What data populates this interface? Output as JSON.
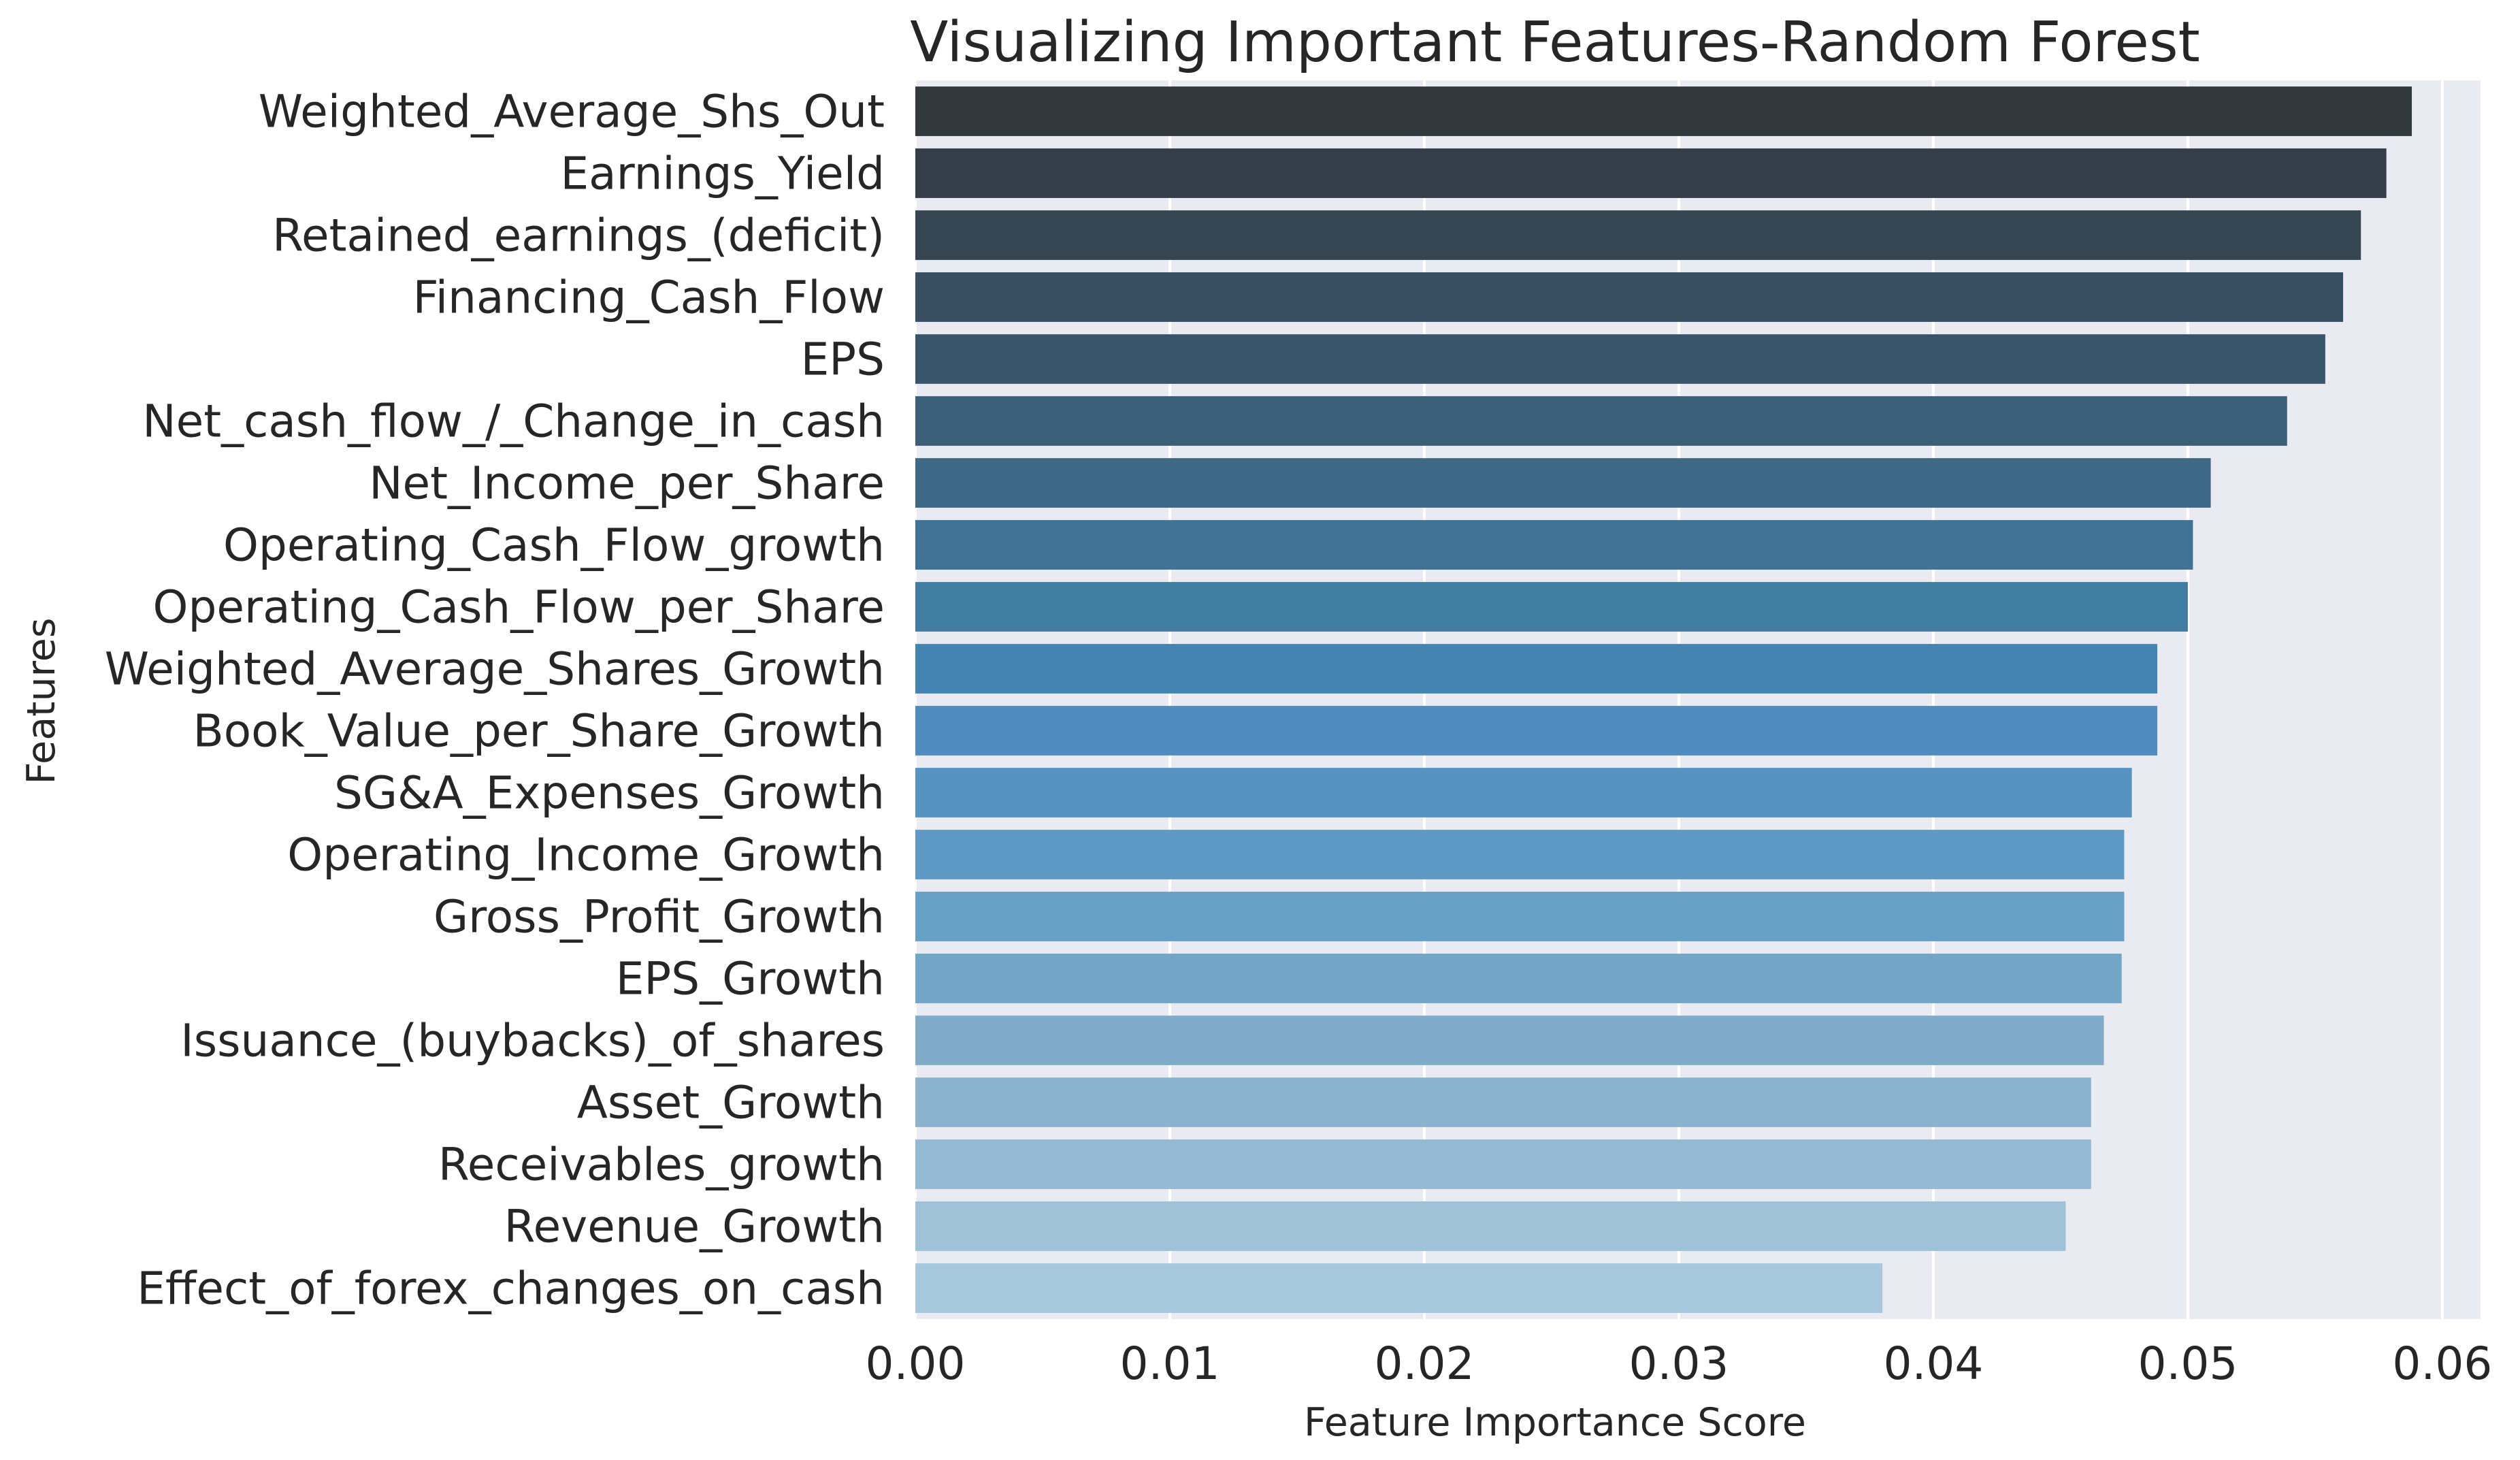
{
  "chart_data": {
    "type": "bar",
    "orientation": "horizontal",
    "title": "Visualizing Important Features-Random Forest",
    "xlabel": "Feature Importance Score",
    "ylabel": "Features",
    "xlim": [
      0,
      0.0615
    ],
    "xticks": [
      "0.00",
      "0.01",
      "0.02",
      "0.03",
      "0.04",
      "0.05",
      "0.06"
    ],
    "grid": true,
    "background": "#eaeaf2",
    "palette": "Blues_d",
    "categories": [
      "Weighted_Average_Shs_Out",
      "Earnings_Yield",
      "Retained_earnings_(deficit)",
      "Financing_Cash_Flow",
      "EPS",
      "Net_cash_flow_/_Change_in_cash",
      "Net_Income_per_Share",
      "Operating_Cash_Flow_growth",
      "Operating_Cash_Flow_per_Share",
      "Weighted_Average_Shares_Growth",
      "Book_Value_per_Share_Growth",
      "SG&A_Expenses_Growth",
      "Operating_Income_Growth",
      "Gross_Profit_Growth",
      "EPS_Growth",
      "Issuance_(buybacks)_of_shares",
      "Asset_Growth",
      "Receivables_growth",
      "Revenue_Growth",
      "Effect_of_forex_changes_on_cash"
    ],
    "values": [
      0.0588,
      0.0578,
      0.0568,
      0.0561,
      0.0554,
      0.0539,
      0.0509,
      0.0502,
      0.05,
      0.0488,
      0.0488,
      0.0478,
      0.0475,
      0.0475,
      0.0474,
      0.0467,
      0.0462,
      0.0462,
      0.0452,
      0.038
    ],
    "colors": [
      "#32383e",
      "#333e48",
      "#354553",
      "#374e60",
      "#39556b",
      "#3b5f79",
      "#3e6986",
      "#3f7294",
      "#407ba1",
      "#4385b0",
      "#4f8bbe",
      "#5693c2",
      "#5f99c5",
      "#67a0c7",
      "#72a6c8",
      "#80acca",
      "#8bb3cd",
      "#94b9d3",
      "#9fc1d8",
      "#a6c7de"
    ]
  }
}
